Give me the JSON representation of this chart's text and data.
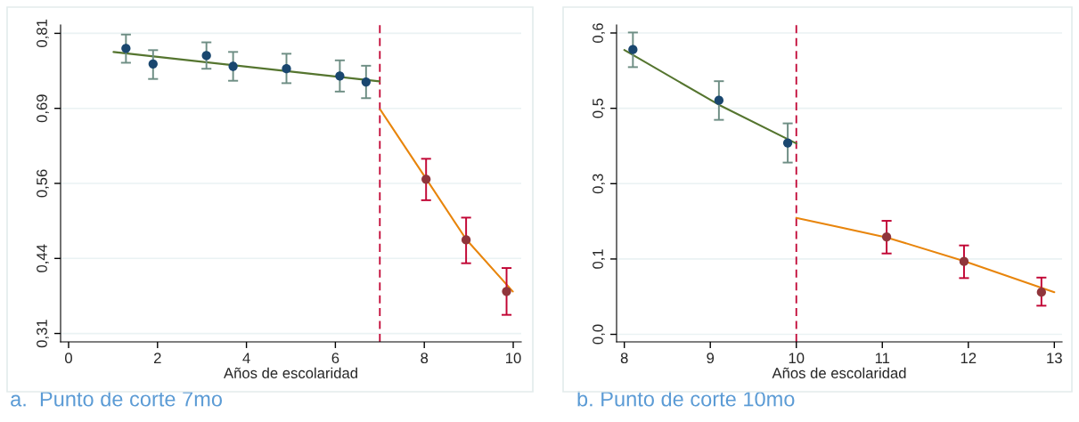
{
  "chart_data": [
    {
      "type": "scatter",
      "title": "a.  Punto de corte 7mo",
      "xlabel": "Años de escolaridad",
      "xlim": [
        -0.18,
        10.18
      ],
      "xticks": [
        0,
        2,
        4,
        6,
        8,
        10
      ],
      "ylim": [
        0.296,
        0.824
      ],
      "yticks": [
        {
          "value": 0.31,
          "label": "0,31"
        },
        {
          "value": 0.435,
          "label": "0,44"
        },
        {
          "value": 0.56,
          "label": "0,56"
        },
        {
          "value": 0.685,
          "label": "0,69"
        },
        {
          "value": 0.81,
          "label": "0,81"
        }
      ],
      "grid": "y",
      "ref_lines": [
        {
          "axis": "x",
          "value": 7,
          "color": "#c10534",
          "line_style": "dashed"
        }
      ],
      "series": [
        {
          "marker": "circle",
          "color": "#1a476f",
          "x": [
            1.29,
            1.9,
            3.1,
            3.7,
            4.9,
            6.1,
            6.69
          ],
          "values": [
            0.785,
            0.759,
            0.773,
            0.755,
            0.751,
            0.739,
            0.729
          ],
          "errors": [
            [
              0.761,
              0.808
            ],
            [
              0.734,
              0.782
            ],
            [
              0.751,
              0.795
            ],
            [
              0.731,
              0.779
            ],
            [
              0.727,
              0.776
            ],
            [
              0.713,
              0.765
            ],
            [
              0.702,
              0.756
            ]
          ]
        },
        {
          "marker": "circle",
          "color": "#90353b",
          "x": [
            8.04,
            8.94,
            9.85
          ],
          "values": [
            0.567,
            0.466,
            0.38
          ],
          "errors": [
            [
              0.532,
              0.601
            ],
            [
              0.427,
              0.503
            ],
            [
              0.341,
              0.419
            ]
          ]
        },
        {
          "type": "line",
          "color": "#55752f",
          "x": [
            1.01,
            6.99
          ],
          "values": [
            0.779,
            0.73
          ]
        },
        {
          "type": "line",
          "color": "#e8850c",
          "x": [
            7.01,
            8.04,
            8.94,
            9.99
          ],
          "values": [
            0.683,
            0.568,
            0.467,
            0.38
          ]
        }
      ]
    },
    {
      "type": "scatter",
      "title": "b. Punto de corte 10mo",
      "xlabel": "Años de escolaridad",
      "xlim": [
        7.91,
        13.09
      ],
      "xticks": [
        8,
        9,
        10,
        11,
        12,
        13
      ],
      "ylim": [
        -0.015,
        0.616
      ],
      "yticks": [
        {
          "value": 0,
          "label": "0,0"
        },
        {
          "value": 0.15,
          "label": "0,1"
        },
        {
          "value": 0.3,
          "label": "0,3"
        },
        {
          "value": 0.45,
          "label": "0,5"
        },
        {
          "value": 0.6,
          "label": "0,6"
        }
      ],
      "grid": "y",
      "ref_lines": [
        {
          "axis": "x",
          "value": 10,
          "color": "#c10534",
          "line_style": "dashed"
        }
      ],
      "series": [
        {
          "marker": "circle",
          "color": "#1a476f",
          "x": [
            8.1,
            9.1,
            9.9
          ],
          "values": [
            0.567,
            0.466,
            0.381
          ],
          "errors": [
            [
              0.532,
              0.601
            ],
            [
              0.427,
              0.504
            ],
            [
              0.342,
              0.42
            ]
          ]
        },
        {
          "marker": "circle",
          "color": "#90353b",
          "x": [
            11.05,
            11.95,
            12.85
          ],
          "values": [
            0.194,
            0.145,
            0.084
          ],
          "errors": [
            [
              0.161,
              0.226
            ],
            [
              0.112,
              0.177
            ],
            [
              0.057,
              0.113
            ]
          ]
        },
        {
          "type": "line",
          "color": "#55752f",
          "x": [
            8.0,
            9.1,
            10.0
          ],
          "values": [
            0.566,
            0.457,
            0.38
          ]
        },
        {
          "type": "line",
          "color": "#e8850c",
          "x": [
            10.0,
            11.05,
            11.95,
            13.0
          ],
          "values": [
            0.232,
            0.193,
            0.146,
            0.084
          ]
        }
      ]
    }
  ]
}
